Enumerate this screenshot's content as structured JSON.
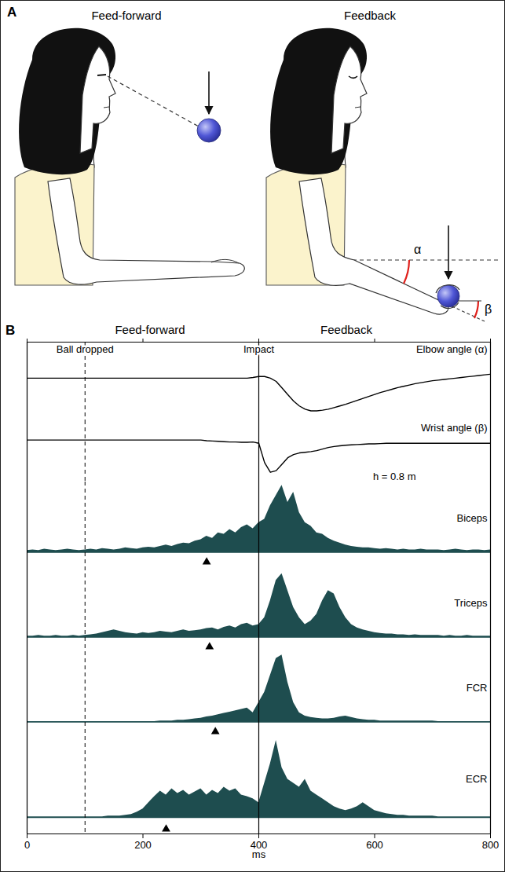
{
  "panel_a": {
    "letter": "A",
    "titles": [
      "Feed-forward",
      "Feedback"
    ],
    "angles": [
      "α",
      "β"
    ]
  },
  "chart_data": {
    "type": "line",
    "letter": "B",
    "phase_labels": [
      "Feed-forward",
      "Feedback"
    ],
    "xlabel": "ms",
    "xlim": [
      0,
      800
    ],
    "xticks": [
      0,
      200,
      400,
      600,
      800
    ],
    "tick_labels": "x",
    "events": [
      {
        "name": "Ball dropped",
        "x": 100,
        "line_style": "dashed"
      },
      {
        "name": "Impact",
        "x": 400,
        "line_style": "solid"
      }
    ],
    "annotation": "h = 0.8 m",
    "x": [
      0,
      10,
      20,
      30,
      40,
      50,
      60,
      70,
      80,
      90,
      100,
      110,
      120,
      130,
      140,
      150,
      160,
      170,
      180,
      190,
      200,
      210,
      220,
      230,
      240,
      250,
      260,
      270,
      280,
      290,
      300,
      310,
      320,
      330,
      340,
      350,
      360,
      370,
      380,
      390,
      400,
      410,
      420,
      430,
      440,
      450,
      460,
      470,
      480,
      490,
      500,
      510,
      520,
      530,
      540,
      550,
      560,
      570,
      580,
      590,
      600,
      610,
      620,
      630,
      640,
      650,
      660,
      670,
      680,
      690,
      700,
      710,
      720,
      730,
      740,
      750,
      760,
      770,
      780,
      790,
      800
    ],
    "series": [
      {
        "name": "Elbow angle (α)",
        "type": "line",
        "color": "#000000",
        "ylim": [
          -1.3,
          1.1
        ],
        "values": [
          0,
          0,
          0,
          0,
          0,
          0,
          0,
          0,
          0,
          0,
          0,
          0,
          0,
          0,
          0,
          0,
          0,
          0,
          0,
          0,
          0,
          0,
          0,
          0,
          0,
          0,
          0,
          0,
          0,
          0,
          0,
          0,
          0,
          0,
          0,
          0,
          0,
          0,
          0,
          0.02,
          0.05,
          0.05,
          0,
          -0.1,
          -0.3,
          -0.5,
          -0.7,
          -0.85,
          -0.95,
          -1.0,
          -1.0,
          -0.98,
          -0.95,
          -0.9,
          -0.85,
          -0.8,
          -0.74,
          -0.68,
          -0.62,
          -0.56,
          -0.5,
          -0.44,
          -0.39,
          -0.34,
          -0.29,
          -0.25,
          -0.21,
          -0.17,
          -0.14,
          -0.11,
          -0.08,
          -0.06,
          -0.04,
          -0.02,
          0,
          0.02,
          0.04,
          0.06,
          0.08,
          0.1,
          0.12
        ]
      },
      {
        "name": "Wrist angle (β)",
        "type": "line",
        "color": "#000000",
        "ylim": [
          -1.3,
          0.6
        ],
        "values": [
          0,
          0,
          0,
          0,
          0,
          0,
          0,
          0,
          0,
          0,
          0,
          0,
          0,
          0,
          0,
          0,
          0,
          0,
          0,
          0,
          0,
          0,
          0,
          0,
          0,
          0,
          0,
          0,
          0,
          0,
          0,
          -0.02,
          -0.03,
          -0.04,
          -0.05,
          -0.06,
          -0.06,
          -0.07,
          -0.07,
          -0.06,
          -0.1,
          -0.7,
          -1.0,
          -0.95,
          -0.75,
          -0.55,
          -0.45,
          -0.4,
          -0.38,
          -0.36,
          -0.33,
          -0.28,
          -0.23,
          -0.2,
          -0.18,
          -0.16,
          -0.15,
          -0.14,
          -0.13,
          -0.12,
          -0.12,
          -0.11,
          -0.1,
          -0.1,
          -0.1,
          -0.1,
          -0.1,
          -0.1,
          -0.1,
          -0.1,
          -0.1,
          -0.1,
          -0.1,
          -0.1,
          -0.1,
          -0.1,
          -0.1,
          -0.1,
          -0.1,
          -0.1,
          -0.1
        ]
      },
      {
        "name": "Biceps",
        "type": "area",
        "color": "#1e4d4f",
        "ylim": [
          -0.2,
          1.05
        ],
        "onset": 310,
        "values": [
          0.04,
          0.05,
          0.04,
          0.06,
          0.05,
          0.04,
          0.05,
          0.06,
          0.05,
          0.04,
          0.05,
          0.06,
          0.05,
          0.07,
          0.06,
          0.05,
          0.06,
          0.08,
          0.07,
          0.06,
          0.08,
          0.09,
          0.08,
          0.1,
          0.12,
          0.1,
          0.13,
          0.15,
          0.14,
          0.18,
          0.2,
          0.25,
          0.22,
          0.3,
          0.28,
          0.35,
          0.3,
          0.38,
          0.42,
          0.36,
          0.45,
          0.5,
          0.7,
          0.85,
          1.0,
          0.75,
          0.9,
          0.6,
          0.45,
          0.4,
          0.3,
          0.28,
          0.22,
          0.18,
          0.15,
          0.12,
          0.1,
          0.09,
          0.08,
          0.08,
          0.07,
          0.06,
          0.07,
          0.06,
          0.05,
          0.06,
          0.05,
          0.05,
          0.06,
          0.05,
          0.05,
          0.05,
          0.04,
          0.05,
          0.06,
          0.05,
          0.04,
          0.05,
          0.05,
          0.04,
          0.05
        ]
      },
      {
        "name": "Triceps",
        "type": "area",
        "color": "#1e4d4f",
        "ylim": [
          -0.2,
          1.05
        ],
        "onset": 315,
        "values": [
          0.03,
          0.03,
          0.04,
          0.03,
          0.03,
          0.04,
          0.03,
          0.03,
          0.04,
          0.03,
          0.04,
          0.05,
          0.06,
          0.08,
          0.1,
          0.12,
          0.1,
          0.08,
          0.07,
          0.06,
          0.08,
          0.07,
          0.08,
          0.1,
          0.09,
          0.08,
          0.1,
          0.12,
          0.1,
          0.11,
          0.12,
          0.14,
          0.15,
          0.12,
          0.16,
          0.18,
          0.15,
          0.2,
          0.22,
          0.18,
          0.2,
          0.3,
          0.55,
          0.85,
          0.95,
          0.7,
          0.45,
          0.3,
          0.2,
          0.25,
          0.35,
          0.55,
          0.7,
          0.65,
          0.45,
          0.3,
          0.2,
          0.15,
          0.12,
          0.1,
          0.08,
          0.07,
          0.06,
          0.06,
          0.05,
          0.05,
          0.04,
          0.05,
          0.04,
          0.04,
          0.04,
          0.04,
          0.03,
          0.04,
          0.03,
          0.03,
          0.04,
          0.03,
          0.03,
          0.03,
          0.03
        ]
      },
      {
        "name": "FCR",
        "type": "area",
        "color": "#1e4d4f",
        "ylim": [
          -0.2,
          1.05
        ],
        "onset": 325,
        "values": [
          0.02,
          0.02,
          0.02,
          0.02,
          0.02,
          0.02,
          0.02,
          0.02,
          0.02,
          0.02,
          0.02,
          0.02,
          0.02,
          0.02,
          0.02,
          0.02,
          0.02,
          0.02,
          0.02,
          0.02,
          0.02,
          0.02,
          0.02,
          0.03,
          0.03,
          0.03,
          0.04,
          0.04,
          0.05,
          0.06,
          0.07,
          0.09,
          0.1,
          0.12,
          0.14,
          0.16,
          0.18,
          0.2,
          0.22,
          0.15,
          0.3,
          0.45,
          0.7,
          0.95,
          1.0,
          0.6,
          0.3,
          0.15,
          0.1,
          0.08,
          0.07,
          0.06,
          0.06,
          0.07,
          0.09,
          0.1,
          0.08,
          0.06,
          0.05,
          0.04,
          0.04,
          0.03,
          0.03,
          0.03,
          0.03,
          0.03,
          0.03,
          0.03,
          0.03,
          0.03,
          0.03,
          0.02,
          0.02,
          0.02,
          0.02,
          0.02,
          0.02,
          0.02,
          0.02,
          0.02,
          0.02
        ]
      },
      {
        "name": "ECR",
        "type": "area",
        "color": "#1e4d4f",
        "ylim": [
          -0.2,
          1.05
        ],
        "onset": 240,
        "values": [
          0.02,
          0.02,
          0.02,
          0.02,
          0.02,
          0.02,
          0.02,
          0.02,
          0.02,
          0.02,
          0.02,
          0.02,
          0.02,
          0.02,
          0.03,
          0.03,
          0.03,
          0.04,
          0.05,
          0.08,
          0.12,
          0.2,
          0.28,
          0.35,
          0.3,
          0.38,
          0.32,
          0.36,
          0.3,
          0.34,
          0.38,
          0.3,
          0.36,
          0.32,
          0.4,
          0.35,
          0.38,
          0.3,
          0.28,
          0.25,
          0.2,
          0.45,
          0.7,
          1.0,
          0.65,
          0.5,
          0.45,
          0.4,
          0.5,
          0.35,
          0.3,
          0.25,
          0.2,
          0.15,
          0.12,
          0.1,
          0.12,
          0.15,
          0.2,
          0.15,
          0.1,
          0.08,
          0.06,
          0.05,
          0.04,
          0.04,
          0.03,
          0.03,
          0.03,
          0.03,
          0.03,
          0.02,
          0.02,
          0.02,
          0.02,
          0.02,
          0.02,
          0.02,
          0.02,
          0.02,
          0.02
        ]
      }
    ]
  }
}
